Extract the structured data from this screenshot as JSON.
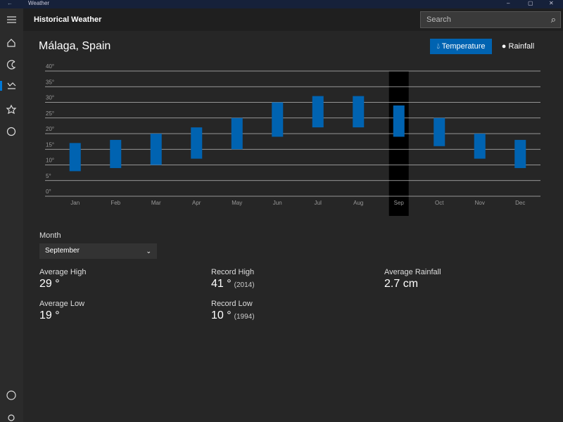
{
  "window_title": "Weather",
  "app_title": "Historical Weather",
  "search_placeholder": "Search",
  "location": "Málaga, Spain",
  "toggle": [
    "Temperature",
    "Rainfall"
  ],
  "month_label": "Month",
  "month_selected": "September",
  "stats": [
    {
      "label": "Average High",
      "value": "29 °"
    },
    {
      "label": "Average Low",
      "value": "19 °"
    },
    {
      "label": "Record High",
      "value": "41 °",
      "note": "(2014)"
    },
    {
      "label": "Record Low",
      "value": "10 °",
      "note": "(1994)"
    },
    {
      "label": "Average Rainfall",
      "value": "2.7 cm"
    }
  ],
  "chart_data": {
    "type": "range-bar",
    "categories": [
      "Jan",
      "Feb",
      "Mar",
      "Apr",
      "May",
      "Jun",
      "Jul",
      "Aug",
      "Sep",
      "Oct",
      "Nov",
      "Dec"
    ],
    "low": [
      8,
      9,
      10,
      12,
      15,
      19,
      22,
      22,
      19,
      16,
      12,
      9
    ],
    "high": [
      17,
      18,
      20,
      22,
      25,
      30,
      32,
      32,
      29,
      25,
      20,
      18
    ],
    "color": "#0063b1",
    "selected_index": 8,
    "ylim": [
      0,
      40
    ],
    "yticks": [
      {
        "value": 0,
        "label": "0°"
      },
      {
        "value": 5,
        "label": "5°"
      },
      {
        "value": 10,
        "label": "10°"
      },
      {
        "value": 15,
        "label": "15°"
      },
      {
        "value": 20,
        "label": "20°"
      },
      {
        "value": 25,
        "label": "25°"
      },
      {
        "value": 30,
        "label": "30°"
      },
      {
        "value": 35,
        "label": "35°"
      },
      {
        "value": 40,
        "label": "40°"
      }
    ],
    "grid": true
  }
}
